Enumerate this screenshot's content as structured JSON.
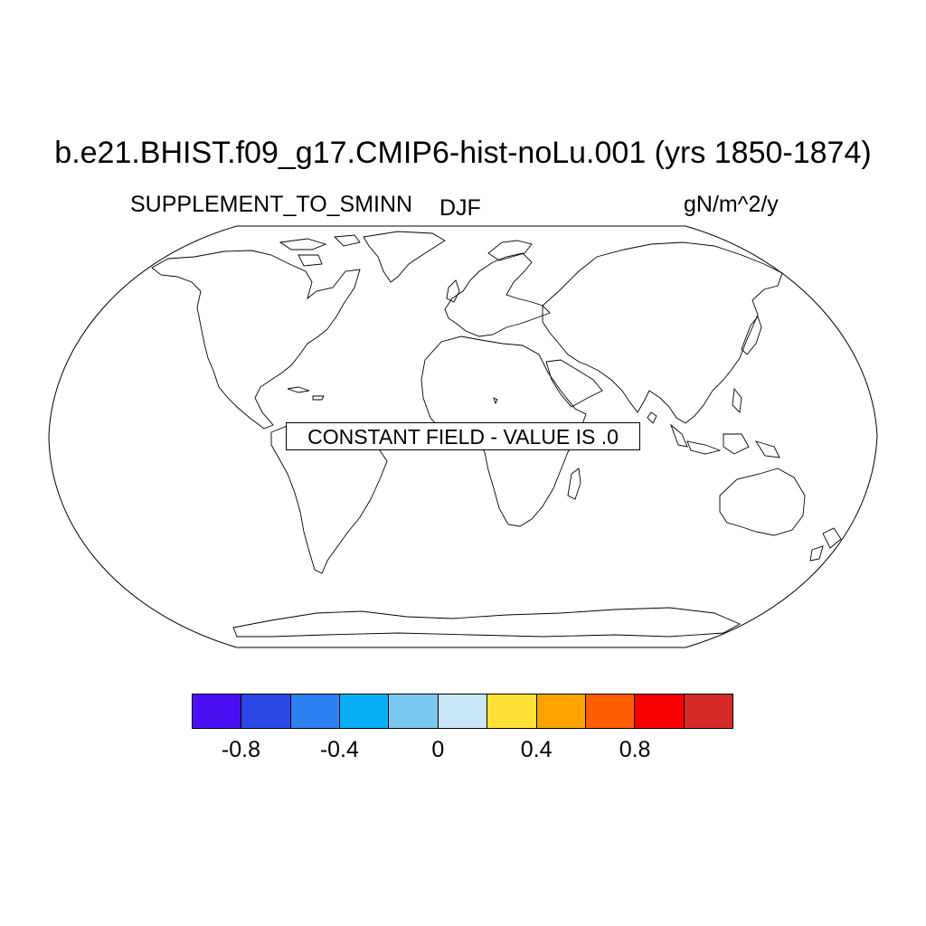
{
  "title": "b.e21.BHIST.f09_g17.CMIP6-hist-noLu.001 (yrs 1850-1874)",
  "left_label": "SUPPLEMENT_TO_SMINN",
  "center_label": "DJF",
  "right_label": "gN/m^2/y",
  "note": "CONSTANT FIELD - VALUE IS .0",
  "colorbar": {
    "colors": [
      "#4a10f2",
      "#2b47e6",
      "#2b7ff0",
      "#08aef8",
      "#7ac8f0",
      "#c8e6f8",
      "#ffe135",
      "#ffa300",
      "#ff5e00",
      "#f80000",
      "#d62a28"
    ],
    "tick_labels": [
      "-0.8",
      "-0.4",
      "0",
      "0.4",
      "0.8"
    ],
    "tick_values": [
      -0.8,
      -0.4,
      0,
      0.4,
      0.8
    ],
    "levels": [
      -1.0,
      -0.8,
      -0.6,
      -0.4,
      -0.2,
      0,
      0.2,
      0.4,
      0.6,
      0.8,
      1.0
    ]
  },
  "map": {
    "projection": "robinson",
    "field_value": 0.0
  }
}
